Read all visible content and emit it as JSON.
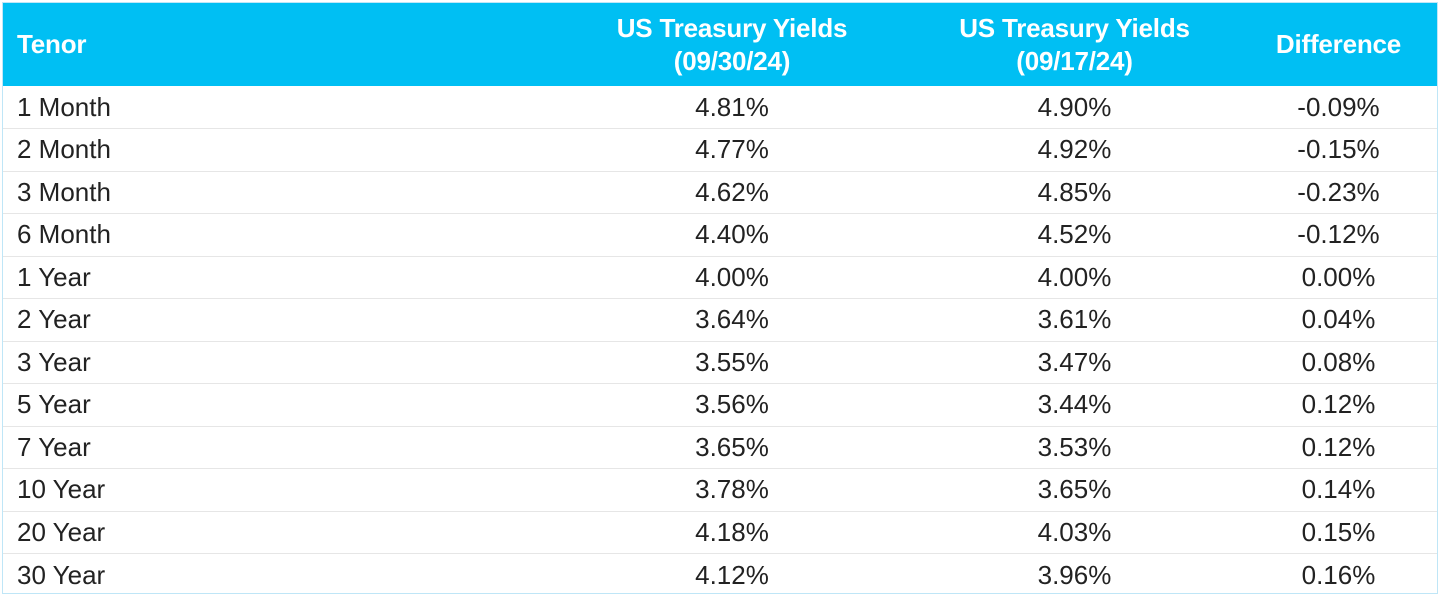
{
  "chart_data": {
    "type": "table",
    "columns": [
      "Tenor",
      "US Treasury Yields (09/30/24)",
      "US Treasury Yields (09/17/24)",
      "Difference"
    ],
    "header": {
      "tenor": "Tenor",
      "col_a_line1": "US Treasury Yields",
      "col_a_line2": "(09/30/24)",
      "col_b_line1": "US Treasury Yields",
      "col_b_line2": "(09/17/24)",
      "difference": "Difference"
    },
    "rows": [
      {
        "tenor": "1 Month",
        "y_0930": "4.81%",
        "y_0917": "4.90%",
        "diff": "-0.09%"
      },
      {
        "tenor": "2 Month",
        "y_0930": "4.77%",
        "y_0917": "4.92%",
        "diff": "-0.15%"
      },
      {
        "tenor": "3 Month",
        "y_0930": "4.62%",
        "y_0917": "4.85%",
        "diff": "-0.23%"
      },
      {
        "tenor": "6 Month",
        "y_0930": "4.40%",
        "y_0917": "4.52%",
        "diff": "-0.12%"
      },
      {
        "tenor": "1 Year",
        "y_0930": "4.00%",
        "y_0917": "4.00%",
        "diff": "0.00%"
      },
      {
        "tenor": "2 Year",
        "y_0930": "3.64%",
        "y_0917": "3.61%",
        "diff": "0.04%"
      },
      {
        "tenor": "3 Year",
        "y_0930": "3.55%",
        "y_0917": "3.47%",
        "diff": "0.08%"
      },
      {
        "tenor": "5 Year",
        "y_0930": "3.56%",
        "y_0917": "3.44%",
        "diff": "0.12%"
      },
      {
        "tenor": "7 Year",
        "y_0930": "3.65%",
        "y_0917": "3.53%",
        "diff": "0.12%"
      },
      {
        "tenor": "10 Year",
        "y_0930": "3.78%",
        "y_0917": "3.65%",
        "diff": "0.14%"
      },
      {
        "tenor": "20 Year",
        "y_0930": "4.18%",
        "y_0917": "4.03%",
        "diff": "0.15%"
      },
      {
        "tenor": "30 Year",
        "y_0930": "4.12%",
        "y_0917": "3.96%",
        "diff": "0.16%"
      }
    ]
  },
  "colors": {
    "header_background": "#00bff3",
    "header_text": "#ffffff",
    "body_text": "#222222",
    "row_divider": "#e6e6e6"
  }
}
